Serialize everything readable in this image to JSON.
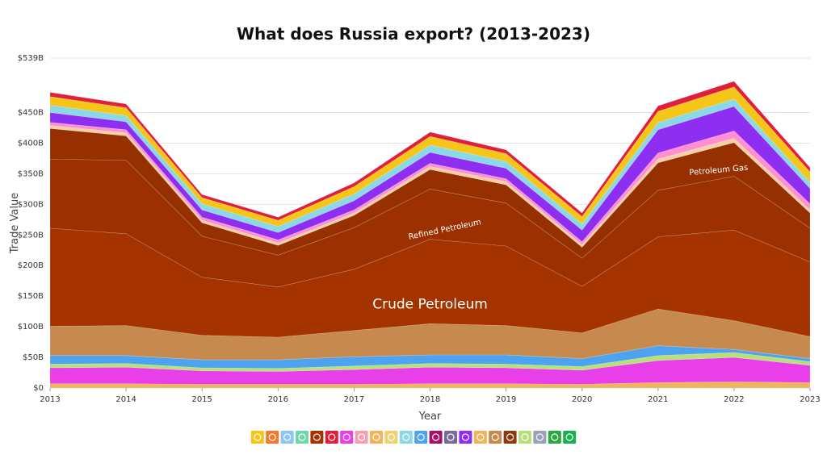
{
  "chart_data": {
    "type": "area",
    "title": "What does Russia export? (2013-2023)",
    "xlabel": "Year",
    "ylabel": "Trade Value",
    "x": [
      2013,
      2014,
      2015,
      2016,
      2017,
      2018,
      2019,
      2020,
      2021,
      2022,
      2023
    ],
    "xticks": [
      "2013",
      "2014",
      "2015",
      "2016",
      "2017",
      "2018",
      "2019",
      "2020",
      "2021",
      "2022",
      "2023"
    ],
    "ylim": [
      0,
      539
    ],
    "yticks": [
      {
        "value": 0,
        "label": "$0"
      },
      {
        "value": 50,
        "label": "$50B"
      },
      {
        "value": 100,
        "label": "$100B"
      },
      {
        "value": 150,
        "label": "$150B"
      },
      {
        "value": 200,
        "label": "$200B"
      },
      {
        "value": 250,
        "label": "$250B"
      },
      {
        "value": 300,
        "label": "$300B"
      },
      {
        "value": 350,
        "label": "$350B"
      },
      {
        "value": 400,
        "label": "$400B"
      },
      {
        "value": 450,
        "label": "$450B"
      },
      {
        "value": 539,
        "label": "$539B"
      }
    ],
    "grid": true,
    "stacked": true,
    "series": [
      {
        "color": "#f0b45a",
        "values": [
          7,
          7,
          6,
          6,
          6,
          7,
          7,
          6,
          9,
          10,
          9
        ]
      },
      {
        "color": "#e83fe8",
        "values": [
          26,
          27,
          22,
          21,
          24,
          27,
          26,
          23,
          36,
          40,
          28
        ]
      },
      {
        "color": "#b8e07a",
        "values": [
          6,
          6,
          5,
          5,
          6,
          6,
          6,
          6,
          8,
          8,
          6
        ]
      },
      {
        "color": "#4da3f0",
        "values": [
          14,
          13,
          13,
          14,
          15,
          14,
          15,
          13,
          16,
          5,
          5
        ]
      },
      {
        "color": "#c78a4e",
        "values": [
          48,
          49,
          40,
          37,
          43,
          51,
          48,
          42,
          60,
          47,
          36
        ]
      },
      {
        "name": "Crude Petroleum",
        "color": "#a43300",
        "values": [
          160,
          150,
          95,
          82,
          100,
          138,
          130,
          76,
          118,
          148,
          122
        ]
      },
      {
        "name": "Refined Petroleum",
        "color": "#9c3000",
        "values": [
          113,
          120,
          67,
          52,
          68,
          82,
          70,
          46,
          76,
          88,
          55
        ]
      },
      {
        "name": "Petroleum Gas",
        "color": "#963000",
        "values": [
          50,
          40,
          22,
          16,
          20,
          32,
          30,
          18,
          45,
          55,
          25
        ]
      },
      {
        "color": "#f4d0a8",
        "values": [
          5,
          5,
          4,
          4,
          4,
          5,
          5,
          4,
          6,
          7,
          5
        ]
      },
      {
        "color": "#ff8fd0",
        "values": [
          5,
          5,
          5,
          5,
          5,
          5,
          5,
          5,
          10,
          12,
          10
        ]
      },
      {
        "color": "#8e2ef0",
        "values": [
          16,
          13,
          12,
          12,
          15,
          18,
          17,
          19,
          38,
          40,
          25
        ]
      },
      {
        "color": "#8ad8e8",
        "values": [
          12,
          10,
          10,
          10,
          11,
          12,
          11,
          10,
          12,
          12,
          10
        ]
      },
      {
        "color": "#f5c518",
        "values": [
          14,
          13,
          10,
          10,
          12,
          14,
          13,
          12,
          18,
          20,
          17
        ]
      },
      {
        "color": "#e0203a",
        "values": [
          7,
          6,
          5,
          5,
          6,
          7,
          6,
          6,
          9,
          9,
          7
        ]
      }
    ],
    "annotations": [
      {
        "text": "Crude Petroleum",
        "x": 2018,
        "y": 130
      },
      {
        "text": "Refined Petroleum",
        "x": 2018.2,
        "y": 255
      },
      {
        "text": "Petroleum Gas",
        "x": 2021.8,
        "y": 352
      }
    ],
    "legend": {
      "placement": "bottom",
      "icons": [
        {
          "icon": "animal-icon",
          "color": "#f5c518"
        },
        {
          "icon": "vegetable-icon",
          "color": "#f27a2a"
        },
        {
          "icon": "animal-vegetable-oil-icon",
          "color": "#8fc3f5"
        },
        {
          "icon": "foodstuff-icon",
          "color": "#6fd8a8"
        },
        {
          "icon": "mineral-icon",
          "color": "#a43300"
        },
        {
          "icon": "chemical-icon",
          "color": "#e0203a"
        },
        {
          "icon": "plastic-icon",
          "color": "#e83fe8"
        },
        {
          "icon": "leather-icon",
          "color": "#f5a0b0"
        },
        {
          "icon": "wood-icon",
          "color": "#f0b45a"
        },
        {
          "icon": "paper-icon",
          "color": "#f0d070"
        },
        {
          "icon": "textile-icon",
          "color": "#8ad8e8"
        },
        {
          "icon": "footwear-icon",
          "color": "#4da3f0"
        },
        {
          "icon": "stone-glass-icon",
          "color": "#a6106a"
        },
        {
          "icon": "precious-metal-icon",
          "color": "#7a6a9a"
        },
        {
          "icon": "metal-icon",
          "color": "#8e2ef0"
        },
        {
          "icon": "machine-icon",
          "color": "#f0b45a"
        },
        {
          "icon": "transportation-icon",
          "color": "#c78a4e"
        },
        {
          "icon": "instrument-icon",
          "color": "#8a3a10"
        },
        {
          "icon": "weapon-icon",
          "color": "#b8e07a"
        },
        {
          "icon": "miscellaneous-icon",
          "color": "#9aa0b8"
        },
        {
          "icon": "art-icon",
          "color": "#2aa840"
        },
        {
          "icon": "unspecified-icon",
          "color": "#1ab050"
        }
      ]
    }
  }
}
